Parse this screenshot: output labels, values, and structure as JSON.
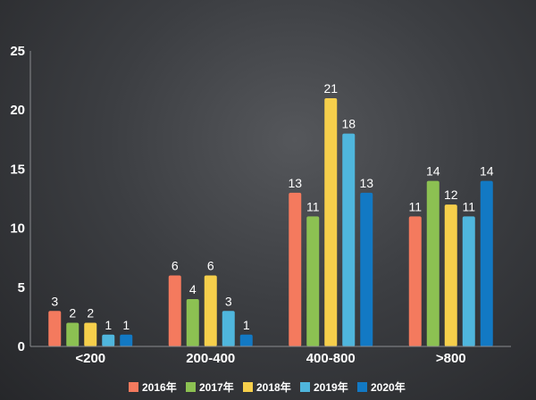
{
  "chart_data": {
    "type": "bar",
    "categories": [
      "<200",
      "200-400",
      "400-800",
      ">800"
    ],
    "series": [
      {
        "name": "2016年",
        "values": [
          3,
          6,
          13,
          11
        ],
        "color": "#f47a5e"
      },
      {
        "name": "2017年",
        "values": [
          2,
          4,
          11,
          14
        ],
        "color": "#8cc152"
      },
      {
        "name": "2018年",
        "values": [
          2,
          6,
          21,
          12
        ],
        "color": "#f6cf4b"
      },
      {
        "name": "2019年",
        "values": [
          1,
          3,
          18,
          11
        ],
        "color": "#4fb6dd"
      },
      {
        "name": "2020年",
        "values": [
          1,
          1,
          13,
          14
        ],
        "color": "#1279c4"
      }
    ],
    "yticks": [
      0,
      5,
      10,
      15,
      20,
      25
    ],
    "ylim": [
      0,
      25
    ],
    "legend_position": "bottom",
    "grid": false,
    "data_labels": true
  }
}
